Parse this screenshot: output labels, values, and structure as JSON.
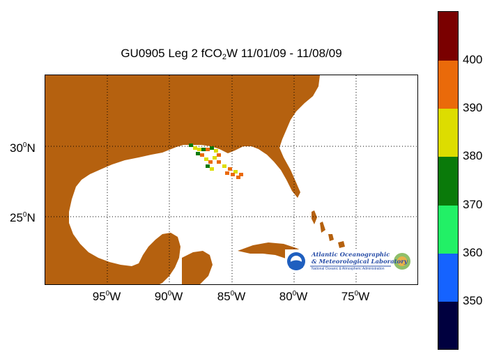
{
  "title": {
    "prefix": "GU0905 Leg 2 fCO",
    "sub": "2",
    "suffix": "W 11/01/09 - 11/08/09"
  },
  "map": {
    "land_color": "#b5610f",
    "water_color": "#ffffff",
    "grid": "dotted",
    "lon_ticks": [
      {
        "value": "95",
        "sup": "0",
        "hemi": "W"
      },
      {
        "value": "90",
        "sup": "0",
        "hemi": "W"
      },
      {
        "value": "85",
        "sup": "0",
        "hemi": "W"
      },
      {
        "value": "80",
        "sup": "0",
        "hemi": "W"
      },
      {
        "value": "75",
        "sup": "0",
        "hemi": "W"
      }
    ],
    "lat_ticks": [
      {
        "value": "30",
        "sup": "0",
        "hemi": "N"
      },
      {
        "value": "25",
        "sup": "0",
        "hemi": "N"
      }
    ]
  },
  "colorbar": {
    "labels": [
      "400",
      "390",
      "380",
      "370",
      "360",
      "350"
    ],
    "colors": [
      "#7a0000",
      "#ea6a0a",
      "#dddd00",
      "#0a7a0a",
      "#22f066",
      "#1563ff",
      "#00003f"
    ]
  },
  "logo": {
    "line1": "Atlantic Oceanographic",
    "line2": "& Meteorological Laboratory",
    "line3": "National Oceanic & Atmospheric Administration",
    "noaa": "NOAA"
  }
}
